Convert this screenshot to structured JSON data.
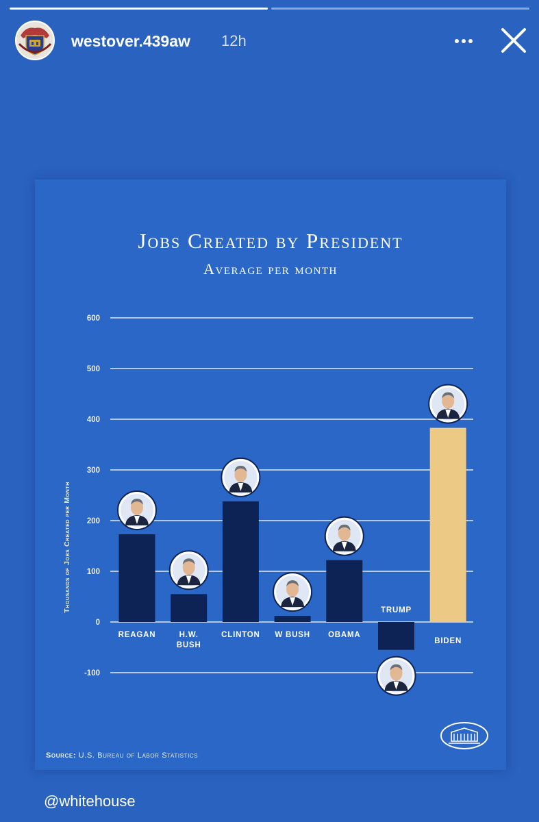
{
  "story": {
    "username": "westover.439aw",
    "time_ago": "12h",
    "progress": [
      1.0,
      0.0
    ]
  },
  "chart_data": {
    "type": "bar",
    "title": "Jobs Created by President",
    "subtitle": "Average per month",
    "ylabel": "Thousands of Jobs Created per Month",
    "xlabel": "",
    "ylim": [
      -100,
      600
    ],
    "yticks": [
      "600",
      "500",
      "400",
      "300",
      "200",
      "100",
      "0",
      "-100"
    ],
    "ytick_values": [
      600,
      500,
      400,
      300,
      200,
      100,
      0,
      -100
    ],
    "categories": [
      "REAGAN",
      "H.W. BUSH",
      "CLINTON",
      "W BUSH",
      "OBAMA",
      "TRUMP",
      "BIDEN"
    ],
    "category_lines": [
      [
        "REAGAN"
      ],
      [
        "H.W.",
        "BUSH"
      ],
      [
        "CLINTON"
      ],
      [
        "W BUSH"
      ],
      [
        "OBAMA"
      ],
      [
        "TRUMP"
      ],
      [
        "BIDEN"
      ]
    ],
    "values": [
      173,
      55,
      238,
      12,
      122,
      -55,
      383
    ],
    "highlight": "BIDEN",
    "grid": true,
    "colors": {
      "bar": "#0d2356",
      "highlight": "#ecca85",
      "grid": "#e6ecf8"
    }
  },
  "source": {
    "label": "Source:",
    "text": "U.S. Bureau of Labor Statistics"
  },
  "footer": {
    "handle": "@whitehouse"
  }
}
